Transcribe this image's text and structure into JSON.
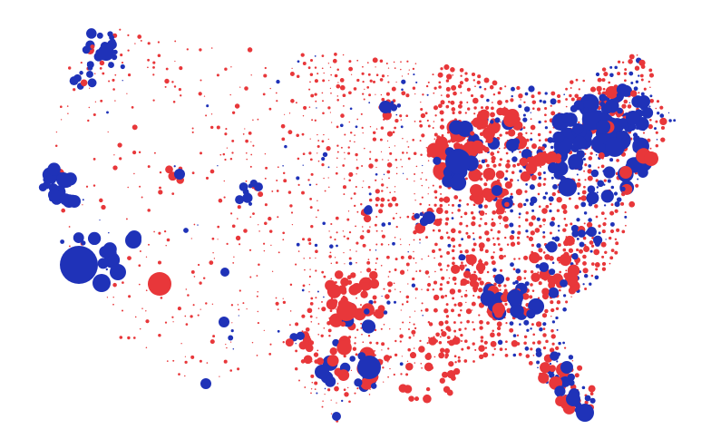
{
  "map": {
    "kind": "county-bubble-map",
    "region": "United States",
    "legend_visible": false,
    "colors": {
      "red": "#e8373a",
      "blue": "#1f32b8",
      "background": "#ffffff"
    }
  }
}
